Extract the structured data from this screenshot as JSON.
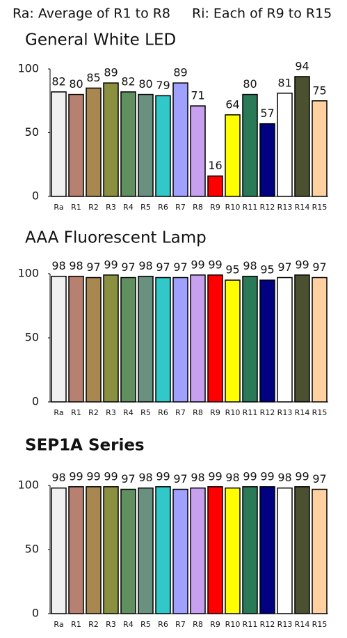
{
  "header": [
    "Ra: Average of R1 to R8",
    "Ri: Each of R9 to R15"
  ],
  "chart_data": [
    {
      "type": "bar",
      "title": "General White LED",
      "categories": [
        "Ra",
        "R1",
        "R2",
        "R3",
        "R4",
        "R5",
        "R6",
        "R7",
        "R8",
        "R9",
        "R10",
        "R11",
        "R12",
        "R13",
        "R14",
        "R15"
      ],
      "values": [
        82,
        80,
        85,
        89,
        82,
        80,
        79,
        89,
        71,
        16,
        64,
        80,
        57,
        81,
        94,
        75
      ],
      "colors": [
        "#f0f0f0",
        "#b88070",
        "#a88850",
        "#8a9040",
        "#609060",
        "#6a9080",
        "#30c8c8",
        "#a0a0ff",
        "#c8a0f0",
        "#ff0000",
        "#ffff00",
        "#2a7a58",
        "#000080",
        "#ffffff",
        "#4a5030",
        "#ffd0a0"
      ],
      "ylim": [
        0,
        100
      ],
      "yticks": [
        0,
        50,
        100
      ]
    },
    {
      "type": "bar",
      "title": "AAA Fluorescent Lamp",
      "categories": [
        "Ra",
        "R1",
        "R2",
        "R3",
        "R4",
        "R5",
        "R6",
        "R7",
        "R8",
        "R9",
        "R10",
        "R11",
        "R12",
        "R13",
        "R14",
        "R15"
      ],
      "values": [
        98,
        98,
        97,
        99,
        97,
        98,
        97,
        97,
        99,
        99,
        95,
        98,
        95,
        97,
        99,
        97
      ],
      "colors": [
        "#f0f0f0",
        "#b88070",
        "#a88850",
        "#8a9040",
        "#609060",
        "#6a9080",
        "#30c8c8",
        "#a0a0ff",
        "#c8a0f0",
        "#ff0000",
        "#ffff00",
        "#2a7a58",
        "#000080",
        "#ffffff",
        "#4a5030",
        "#ffd0a0"
      ],
      "ylim": [
        0,
        100
      ],
      "yticks": [
        0,
        50,
        100
      ]
    },
    {
      "type": "bar",
      "title": "SEP1A Series",
      "categories": [
        "Ra",
        "R1",
        "R2",
        "R3",
        "R4",
        "R5",
        "R6",
        "R7",
        "R8",
        "R9",
        "R10",
        "R11",
        "R12",
        "R13",
        "R14",
        "R15"
      ],
      "values": [
        98,
        99,
        99,
        99,
        97,
        98,
        99,
        97,
        98,
        99,
        98,
        99,
        99,
        98,
        99,
        97
      ],
      "colors": [
        "#f0f0f0",
        "#b88070",
        "#a88850",
        "#8a9040",
        "#609060",
        "#6a9080",
        "#30c8c8",
        "#a0a0ff",
        "#c8a0f0",
        "#ff0000",
        "#ffff00",
        "#2a7a58",
        "#000080",
        "#ffffff",
        "#4a5030",
        "#ffd0a0"
      ],
      "ylim": [
        0,
        100
      ],
      "yticks": [
        0,
        50,
        100
      ]
    }
  ]
}
